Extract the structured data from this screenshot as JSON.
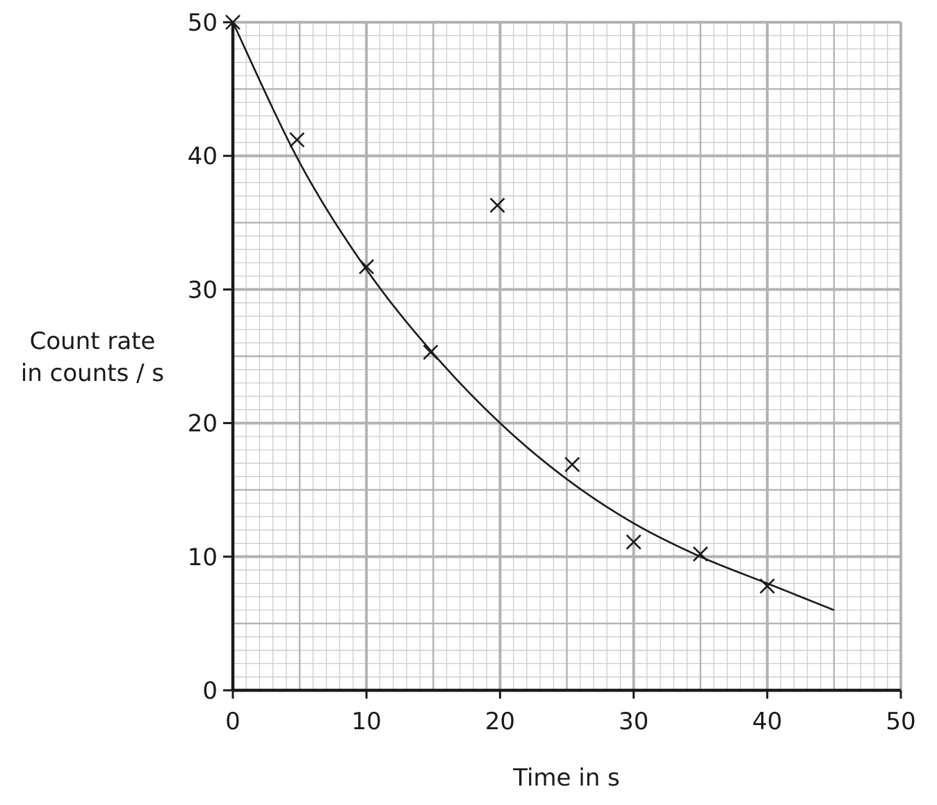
{
  "chart_data": {
    "type": "scatter",
    "title": "",
    "xlabel": "Time in s",
    "ylabel_lines": [
      "Count rate",
      "in counts / s"
    ],
    "xlim": [
      0,
      50
    ],
    "ylim": [
      0,
      50
    ],
    "x_ticks": [
      0,
      10,
      20,
      30,
      40,
      50
    ],
    "y_ticks": [
      0,
      10,
      20,
      30,
      40,
      50
    ],
    "grid": true,
    "grid_minor_step": 1,
    "grid_medium_step": 5,
    "grid_major_step": 10,
    "legend": "none",
    "colors": {
      "axis": "#1a1a1a",
      "grid_minor": "#c8c8c8",
      "grid_major": "#b3b3b3",
      "marker": "#1a1a1a",
      "curve": "#1a1a1a"
    },
    "points": [
      {
        "x": 0,
        "y": 50
      },
      {
        "x": 4.8,
        "y": 41.2
      },
      {
        "x": 10,
        "y": 31.7
      },
      {
        "x": 14.8,
        "y": 25.3
      },
      {
        "x": 19.8,
        "y": 36.3
      },
      {
        "x": 25.4,
        "y": 16.9
      },
      {
        "x": 30,
        "y": 11.1
      },
      {
        "x": 35,
        "y": 10.2
      },
      {
        "x": 40,
        "y": 7.8
      }
    ],
    "fit_curve": {
      "type": "exponential-decay",
      "x": [
        0,
        5,
        10,
        15,
        20,
        25,
        30,
        35,
        40,
        45
      ],
      "y": [
        50,
        39.5,
        31.5,
        25.2,
        20.0,
        15.8,
        12.5,
        10.0,
        8.0,
        6.0
      ]
    }
  }
}
